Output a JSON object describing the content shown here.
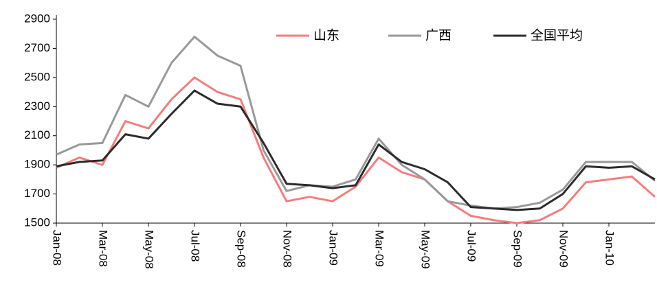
{
  "chart_data": {
    "type": "line",
    "categories": [
      "Jan-08",
      null,
      "Mar-08",
      null,
      "May-08",
      null,
      "Jul-08",
      null,
      "Sep-08",
      null,
      "Nov-08",
      null,
      "Jan-09",
      null,
      "Mar-09",
      null,
      "May-09",
      null,
      "Jul-09",
      null,
      "Sep-09",
      null,
      "Nov-09",
      null,
      "Jan-10",
      null,
      null
    ],
    "series": [
      {
        "name": "山东",
        "color": "#f47c7c",
        "values": [
          1880,
          1950,
          1900,
          2200,
          2150,
          2350,
          2500,
          2400,
          2350,
          1950,
          1650,
          1680,
          1650,
          1750,
          1950,
          1850,
          1800,
          1650,
          1550,
          1520,
          1500,
          1520,
          1600,
          1780,
          1800,
          1820,
          1680
        ]
      },
      {
        "name": "广西",
        "color": "#999999",
        "values": [
          1970,
          2040,
          2050,
          2380,
          2300,
          2600,
          2780,
          2650,
          2580,
          2000,
          1720,
          1760,
          1750,
          1800,
          2080,
          1900,
          1800,
          1650,
          1620,
          1600,
          1610,
          1640,
          1730,
          1920,
          1920,
          1920,
          1790
        ]
      },
      {
        "name": "全国平均",
        "color": "#2b2b2b",
        "values": [
          1890,
          1920,
          1930,
          2110,
          2080,
          2250,
          2410,
          2320,
          2300,
          2050,
          1770,
          1760,
          1740,
          1760,
          2040,
          1920,
          1870,
          1780,
          1610,
          1600,
          1590,
          1600,
          1700,
          1890,
          1880,
          1890,
          1800
        ]
      }
    ],
    "ylim": [
      1500,
      2900
    ],
    "yticks": [
      1500,
      1700,
      1900,
      2100,
      2300,
      2500,
      2700,
      2900
    ],
    "legend": "top-right"
  }
}
